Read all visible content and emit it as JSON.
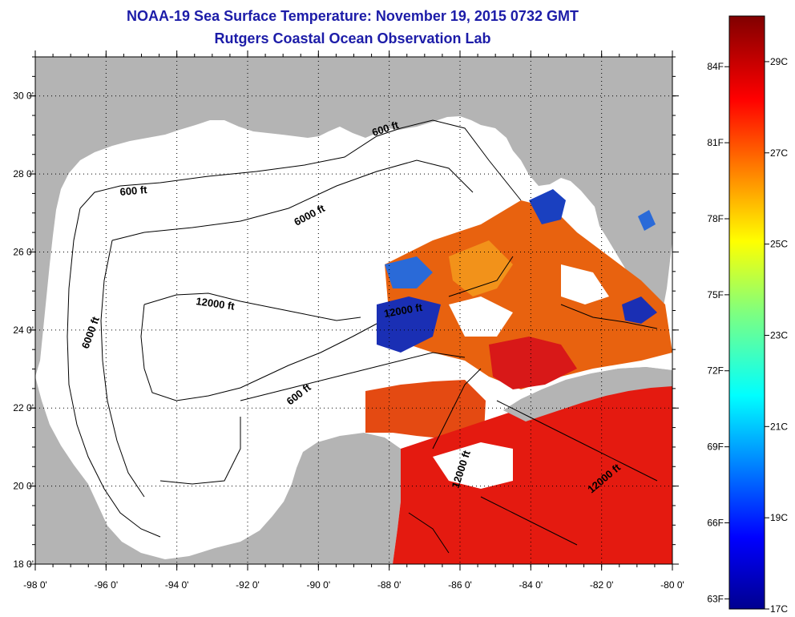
{
  "title": "NOAA-19 Sea Surface Temperature:  November 19, 2015 0732 GMT",
  "subtitle": "Rutgers Coastal Ocean Observation Lab",
  "map": {
    "lon_ticks": [
      "-98 0'",
      "-96 0'",
      "-94 0'",
      "-92 0'",
      "-90 0'",
      "-88 0'",
      "-86 0'",
      "-84 0'",
      "-82 0'",
      "-80 0'"
    ],
    "lat_ticks": [
      "18 0'",
      "20 0'",
      "22 0'",
      "24 0'",
      "26 0'",
      "28 0'",
      "30 0'"
    ],
    "lon_range": [
      -98,
      -80
    ],
    "lat_range": [
      18,
      31
    ],
    "colors": {
      "land": "#b4b4b4",
      "ocean": "#ffffff",
      "grid": "#000000"
    },
    "contour_labels": [
      {
        "text": "600 ft"
      },
      {
        "text": "600 ft"
      },
      {
        "text": "600 ft"
      },
      {
        "text": "6000 ft"
      },
      {
        "text": "6000 ft"
      },
      {
        "text": "12000 ft"
      },
      {
        "text": "12000 ft"
      },
      {
        "text": "12000 ft"
      },
      {
        "text": "12000 ft"
      }
    ]
  },
  "colorbar": {
    "f_labels": [
      "63F",
      "66F",
      "69F",
      "72F",
      "75F",
      "78F",
      "81F",
      "84F"
    ],
    "c_labels": [
      "17C",
      "19C",
      "21C",
      "23C",
      "25C",
      "27C",
      "29C"
    ],
    "f_values": [
      63,
      66,
      69,
      72,
      75,
      78,
      81,
      84
    ],
    "c_values": [
      17,
      19,
      21,
      23,
      25,
      27,
      29
    ],
    "range_c": [
      17,
      30
    ]
  }
}
